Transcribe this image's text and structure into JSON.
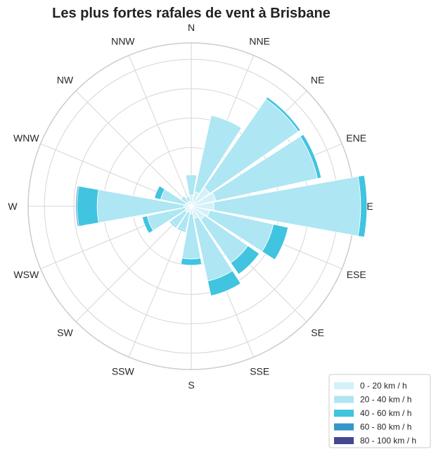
{
  "chart_data": {
    "type": "windrose",
    "title": "Les plus fortes rafales de vent à Brisbane",
    "directions": [
      "N",
      "NNE",
      "NE",
      "ENE",
      "E",
      "ESE",
      "SE",
      "SSE",
      "S",
      "SSW",
      "SW",
      "WSW",
      "W",
      "WNW",
      "NW",
      "NNW"
    ],
    "rmax": 13,
    "grid": true,
    "legend_position": "bottom-right",
    "series": [
      {
        "name": "0 - 20 km / h",
        "color": "#d4f1f9",
        "values": [
          0.9,
          1.2,
          1.8,
          2.0,
          1.8,
          1.5,
          1.3,
          1.0,
          0.6,
          0.5,
          0.6,
          0.5,
          0.6,
          0.5,
          0.4,
          0.4
        ]
      },
      {
        "name": "20 - 40 km / h",
        "color": "#aee6f3",
        "values": [
          1.6,
          6.2,
          8.6,
          8.3,
          11.7,
          5.2,
          4.2,
          5.1,
          3.6,
          1.5,
          1.4,
          3.1,
          6.9,
          2.0,
          0.6,
          0.4
        ]
      },
      {
        "name": "40 - 60 km / h",
        "color": "#40c4df",
        "values": [
          0,
          0,
          0.2,
          0.3,
          0.5,
          1.2,
          1.1,
          1.2,
          0.5,
          0.1,
          0.1,
          0.4,
          1.6,
          0.5,
          0,
          0
        ]
      },
      {
        "name": "60 - 80 km / h",
        "color": "#3596c9",
        "values": [
          0,
          0,
          0,
          0,
          0,
          0,
          0,
          0,
          0,
          0,
          0,
          0,
          0.1,
          0,
          0,
          0
        ]
      },
      {
        "name": "80 - 100 km / h",
        "color": "#434890",
        "values": [
          0,
          0,
          0,
          0,
          0,
          0,
          0,
          0,
          0,
          0,
          0,
          0,
          0,
          0,
          0,
          0
        ]
      }
    ]
  }
}
